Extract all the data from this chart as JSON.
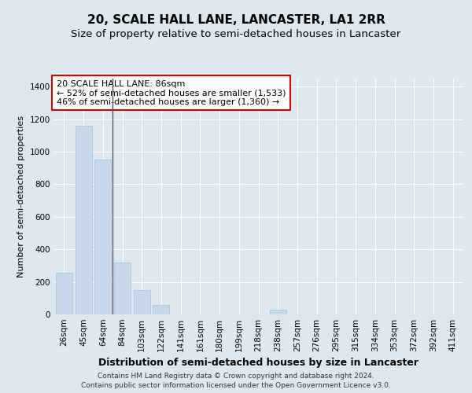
{
  "title": "20, SCALE HALL LANE, LANCASTER, LA1 2RR",
  "subtitle": "Size of property relative to semi-detached houses in Lancaster",
  "xlabel": "Distribution of semi-detached houses by size in Lancaster",
  "ylabel": "Number of semi-detached properties",
  "categories": [
    "26sqm",
    "45sqm",
    "64sqm",
    "84sqm",
    "103sqm",
    "122sqm",
    "141sqm",
    "161sqm",
    "180sqm",
    "199sqm",
    "218sqm",
    "238sqm",
    "257sqm",
    "276sqm",
    "295sqm",
    "315sqm",
    "334sqm",
    "353sqm",
    "372sqm",
    "392sqm",
    "411sqm"
  ],
  "values": [
    255,
    1160,
    950,
    320,
    150,
    60,
    0,
    0,
    0,
    0,
    0,
    28,
    0,
    0,
    0,
    0,
    0,
    0,
    0,
    0,
    0
  ],
  "bar_color": "#c5d8ea",
  "bar_edge_color": "#a8c0d6",
  "property_line_x": 2.5,
  "annotation_title": "20 SCALE HALL LANE: 86sqm",
  "annotation_line1": "← 52% of semi-detached houses are smaller (1,533)",
  "annotation_line2": "46% of semi-detached houses are larger (1,360) →",
  "annotation_box_facecolor": "#ffffff",
  "annotation_box_edgecolor": "#cc0000",
  "ylim": [
    0,
    1450
  ],
  "yticks": [
    0,
    200,
    400,
    600,
    800,
    1000,
    1200,
    1400
  ],
  "background_color": "#dde8f0",
  "plot_background": "#dde8f0",
  "grid_color": "#ffffff",
  "footer": "Contains HM Land Registry data © Crown copyright and database right 2024.\nContains public sector information licensed under the Open Government Licence v3.0.",
  "title_fontsize": 11,
  "subtitle_fontsize": 9.5,
  "xlabel_fontsize": 9,
  "ylabel_fontsize": 8,
  "tick_fontsize": 7.5,
  "annotation_fontsize": 8,
  "footer_fontsize": 6.5
}
